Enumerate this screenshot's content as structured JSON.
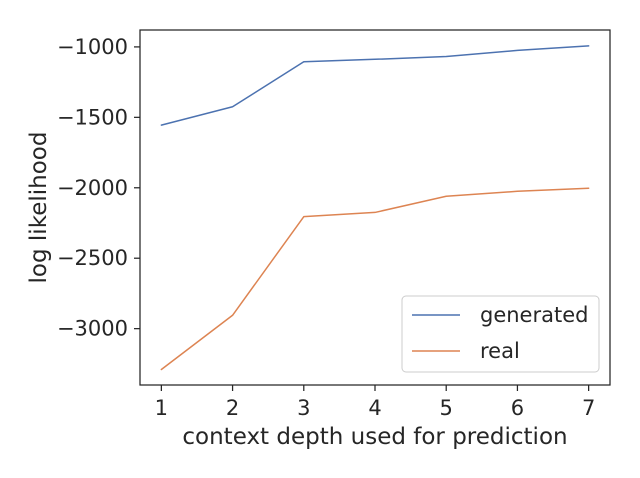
{
  "chart_data": {
    "type": "line",
    "title": "",
    "xlabel": "context depth used for prediction",
    "ylabel": "log likelihood",
    "x": [
      1,
      2,
      3,
      4,
      5,
      6,
      7
    ],
    "xticks": [
      "1",
      "2",
      "3",
      "4",
      "5",
      "6",
      "7"
    ],
    "yticks": [
      {
        "value": -3000,
        "label": "−3000"
      },
      {
        "value": -2500,
        "label": "−2500"
      },
      {
        "value": -2000,
        "label": "−2000"
      },
      {
        "value": -1500,
        "label": "−1500"
      },
      {
        "value": -1000,
        "label": "−1000"
      }
    ],
    "xlim": [
      0.7,
      7.3
    ],
    "ylim": [
      -3400,
      -880
    ],
    "grid": false,
    "legend_position": "lower right",
    "series": [
      {
        "name": "generated",
        "color": "#4c72b0",
        "values": [
          -1555,
          -1425,
          -1105,
          -1088,
          -1068,
          -1025,
          -993
        ]
      },
      {
        "name": "real",
        "color": "#dd8452",
        "values": [
          -3290,
          -2905,
          -2205,
          -2175,
          -2060,
          -2025,
          -2003
        ]
      }
    ]
  }
}
